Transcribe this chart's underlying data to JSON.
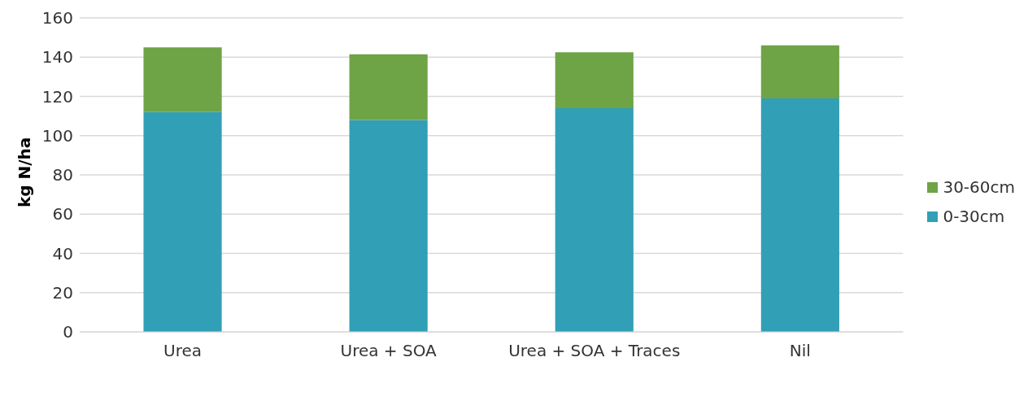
{
  "chart_data": {
    "type": "bar",
    "stacked": true,
    "ylabel": "kg N/ha",
    "categories": [
      "Urea",
      "Urea  + SOA",
      "Urea + SOA + Traces",
      "Nil"
    ],
    "series": [
      {
        "name": "0-30cm",
        "color": "#319fb5",
        "values": [
          112,
          108,
          114,
          119
        ]
      },
      {
        "name": "30-60cm",
        "color": "#6ea346",
        "values": [
          33,
          33.5,
          28.5,
          27
        ]
      }
    ],
    "ylim": [
      0,
      160
    ],
    "yticks": [
      0,
      20,
      40,
      60,
      80,
      100,
      120,
      140,
      160
    ],
    "grid": "y",
    "legend": "right"
  }
}
